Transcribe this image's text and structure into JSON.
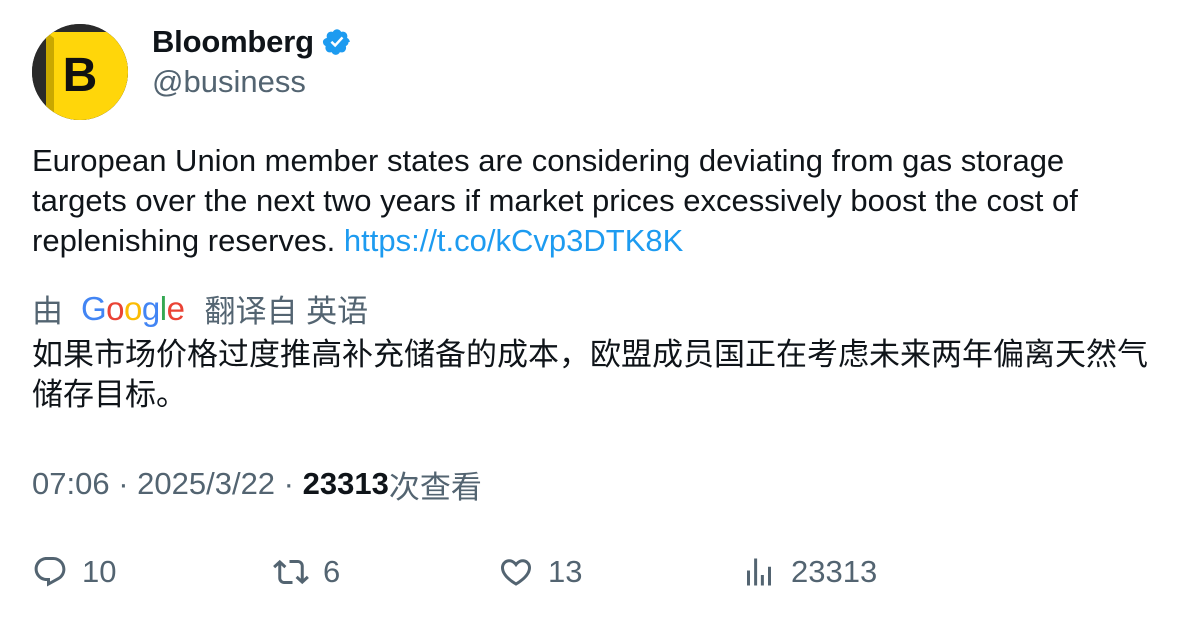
{
  "account": {
    "display_name": "Bloomberg",
    "handle": "@business",
    "verified": true,
    "avatar_letter": "B",
    "avatar_color": "#ffd60a"
  },
  "tweet": {
    "text": "European Union member states are considering deviating from gas storage targets over the next two years if market prices excessively boost the cost of replenishing reserves.",
    "link": "https://t.co/kCvp3DTK8K"
  },
  "translation": {
    "by_label": "由",
    "provider": "Google",
    "from_label": "翻译自 英语",
    "text": "如果市场价格过度推高补充储备的成本，欧盟成员国正在考虑未来两年偏离天然气储存目标。"
  },
  "meta": {
    "time": "07:06",
    "separator": " · ",
    "date": "2025/3/22",
    "views_count": "23313",
    "views_label": "次查看"
  },
  "actions": {
    "replies": "10",
    "retweets": "6",
    "likes": "13",
    "views": "23313"
  },
  "colors": {
    "link": "#1d9bf0",
    "secondary_text": "#536471",
    "primary_text": "#0f1419",
    "verified_badge": "#1d9bf0"
  },
  "icons": [
    "reply-icon",
    "retweet-icon",
    "like-icon",
    "views-icon",
    "verified-badge-icon"
  ]
}
